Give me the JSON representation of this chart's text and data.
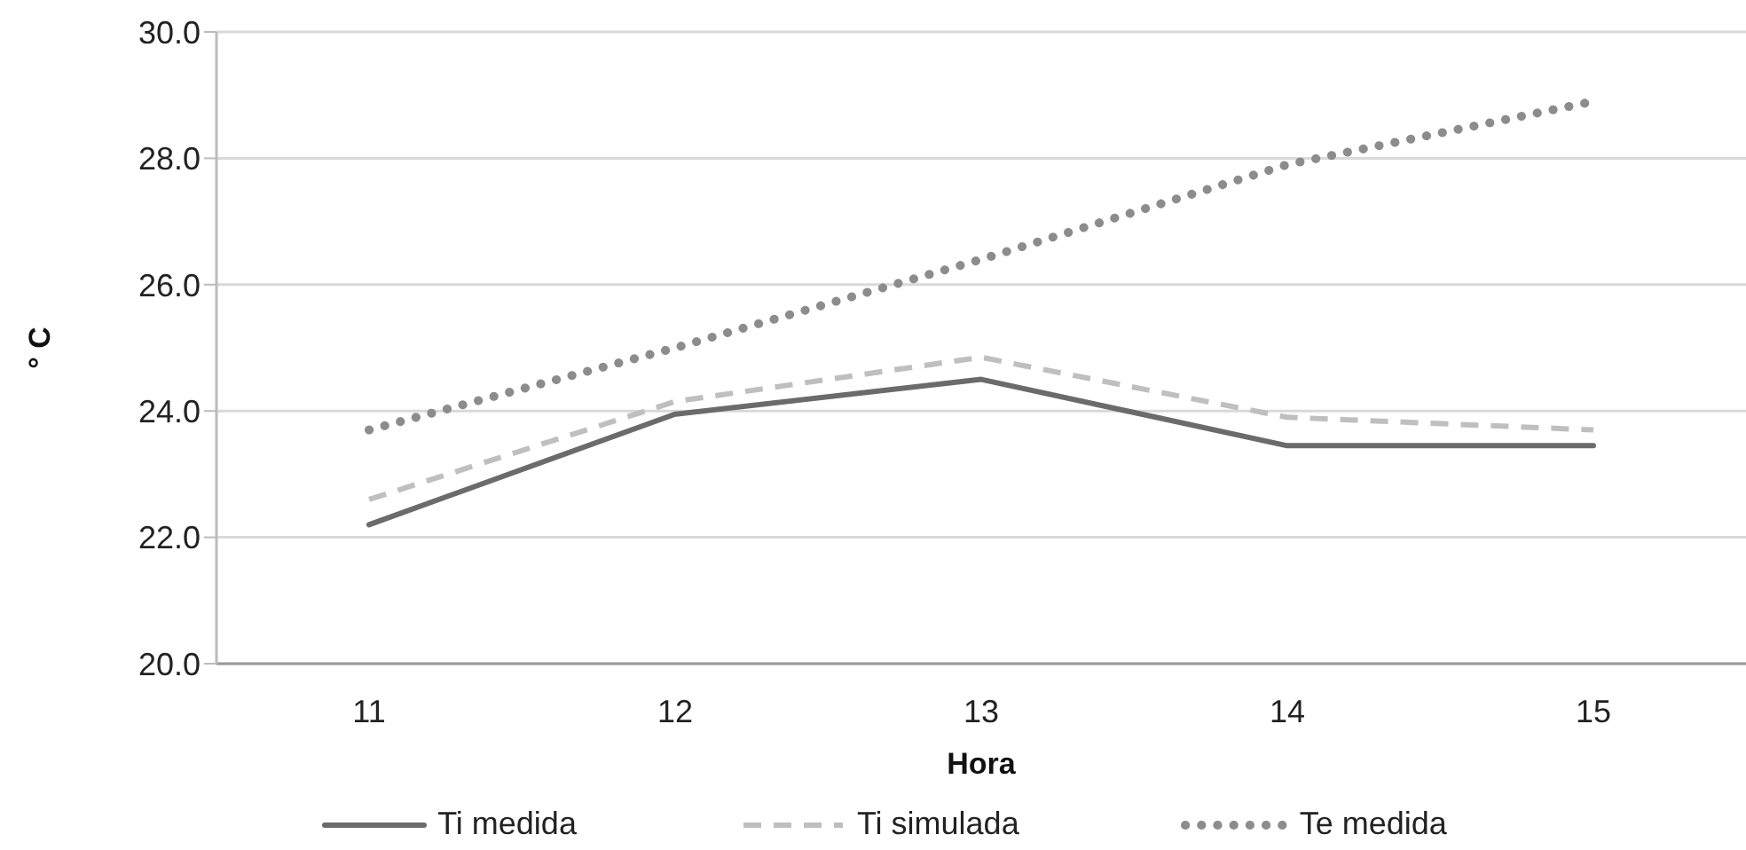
{
  "chart_data": {
    "type": "line",
    "xlabel": "Hora",
    "ylabel": "° C",
    "categories": [
      "11",
      "12",
      "13",
      "14",
      "15"
    ],
    "series": [
      {
        "name": "Ti medida",
        "color": "#6b6b6b",
        "line_style": "solid",
        "values": [
          22.2,
          23.95,
          24.5,
          23.45,
          23.45
        ]
      },
      {
        "name": "Ti simulada",
        "color": "#bfbfbf",
        "line_style": "dashed",
        "values": [
          22.6,
          24.15,
          24.85,
          23.9,
          23.7
        ]
      },
      {
        "name": "Te medida",
        "color": "#8c8c8c",
        "line_style": "dotted",
        "values": [
          23.7,
          25.0,
          26.4,
          27.9,
          28.9
        ]
      }
    ],
    "ylim": [
      20,
      30
    ],
    "yticks": [
      {
        "value": 20,
        "label": "20.0"
      },
      {
        "value": 22,
        "label": "22.0"
      },
      {
        "value": 24,
        "label": "24.0"
      },
      {
        "value": 26,
        "label": "26.0"
      },
      {
        "value": 28,
        "label": "28.0"
      },
      {
        "value": 30,
        "label": "30.0"
      }
    ],
    "grid": "y",
    "legend": "bottom",
    "marker": "none"
  }
}
